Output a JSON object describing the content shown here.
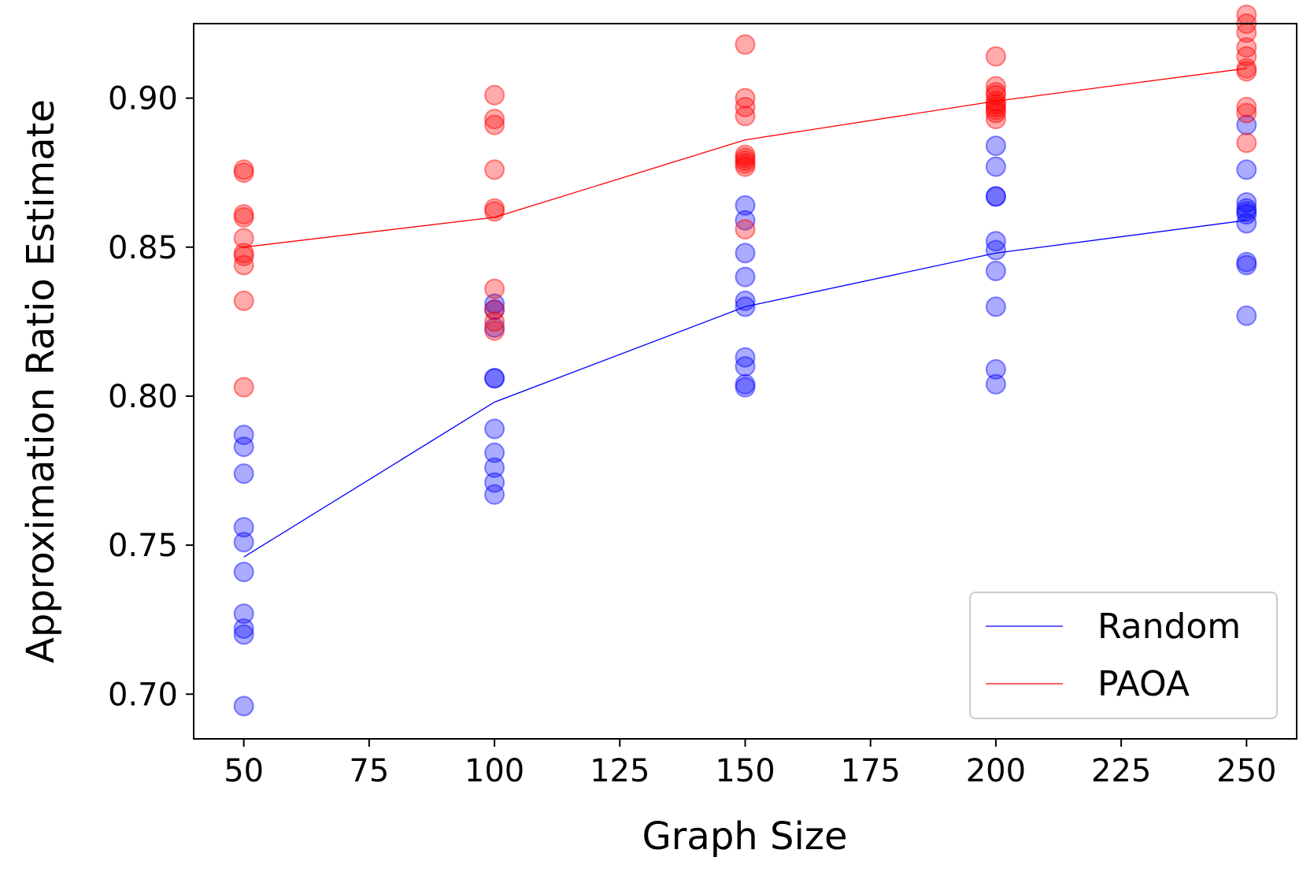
{
  "chart_data": {
    "type": "scatter",
    "title": "",
    "xlabel": "Graph Size",
    "ylabel": "Approximation Ratio Estimate",
    "xlim": [
      40,
      260
    ],
    "ylim": [
      0.685,
      0.925
    ],
    "x_ticks": [
      50,
      75,
      100,
      125,
      150,
      175,
      200,
      225,
      250
    ],
    "x_tick_labels": [
      "50",
      "75",
      "100",
      "125",
      "150",
      "175",
      "200",
      "225",
      "250"
    ],
    "y_ticks": [
      0.7,
      0.75,
      0.8,
      0.85,
      0.9
    ],
    "y_tick_labels": [
      "0.70",
      "0.75",
      "0.80",
      "0.85",
      "0.90"
    ],
    "grid": false,
    "legend_position": "lower-right",
    "series": [
      {
        "name": "Random",
        "color": "#0000ff",
        "line_x": [
          50,
          100,
          150,
          200,
          250
        ],
        "line_y": [
          0.746,
          0.798,
          0.83,
          0.848,
          0.859
        ],
        "points": [
          {
            "x": 50,
            "y": [
              0.787,
              0.783,
              0.774,
              0.756,
              0.751,
              0.741,
              0.727,
              0.722,
              0.72,
              0.696
            ]
          },
          {
            "x": 100,
            "y": [
              0.831,
              0.829,
              0.823,
              0.806,
              0.806,
              0.789,
              0.781,
              0.776,
              0.771,
              0.767
            ]
          },
          {
            "x": 150,
            "y": [
              0.864,
              0.859,
              0.848,
              0.84,
              0.832,
              0.83,
              0.813,
              0.81,
              0.804,
              0.803
            ]
          },
          {
            "x": 200,
            "y": [
              0.884,
              0.877,
              0.867,
              0.867,
              0.852,
              0.842,
              0.83,
              0.809,
              0.804,
              0.849
            ]
          },
          {
            "x": 250,
            "y": [
              0.891,
              0.876,
              0.865,
              0.862,
              0.861,
              0.858,
              0.845,
              0.844,
              0.827,
              0.863
            ]
          }
        ]
      },
      {
        "name": "PAOA",
        "color": "#ff0000",
        "line_x": [
          50,
          100,
          150,
          200,
          250
        ],
        "line_y": [
          0.85,
          0.86,
          0.886,
          0.899,
          0.91
        ],
        "points": [
          {
            "x": 50,
            "y": [
              0.876,
              0.875,
              0.861,
              0.86,
              0.853,
              0.847,
              0.844,
              0.832,
              0.803,
              0.848
            ]
          },
          {
            "x": 100,
            "y": [
              0.901,
              0.893,
              0.891,
              0.876,
              0.863,
              0.862,
              0.836,
              0.829,
              0.825,
              0.822
            ]
          },
          {
            "x": 150,
            "y": [
              0.918,
              0.9,
              0.897,
              0.894,
              0.881,
              0.88,
              0.877,
              0.878,
              0.856,
              0.879
            ]
          },
          {
            "x": 200,
            "y": [
              0.914,
              0.904,
              0.901,
              0.898,
              0.897,
              0.896,
              0.895,
              0.893,
              0.899,
              0.902
            ]
          },
          {
            "x": 250,
            "y": [
              0.928,
              0.925,
              0.922,
              0.917,
              0.914,
              0.91,
              0.909,
              0.897,
              0.895,
              0.885
            ]
          }
        ]
      }
    ]
  }
}
